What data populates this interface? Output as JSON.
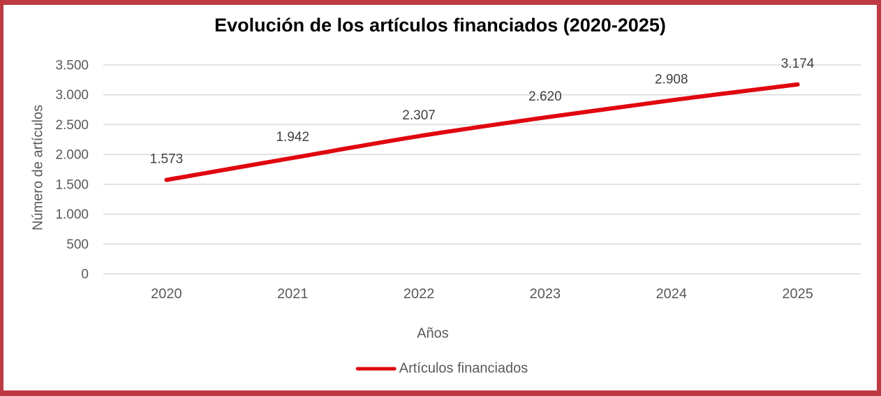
{
  "chart_data": {
    "type": "line",
    "title": "Evolución de los artículos financiados (2020-2025)",
    "xlabel": "Años",
    "ylabel": "Número de artículos",
    "categories": [
      "2020",
      "2021",
      "2022",
      "2023",
      "2024",
      "2025"
    ],
    "series": [
      {
        "name": "Artículos financiados",
        "values": [
          1573,
          1942,
          2307,
          2620,
          2908,
          3174
        ],
        "point_labels": [
          "1.573",
          "1.942",
          "2.307",
          "2.620",
          "2.908",
          "3.174"
        ],
        "color": "#e0070f",
        "smooth": true
      }
    ],
    "y_axis": {
      "min": 0,
      "max": 3500,
      "step": 500,
      "tick_labels": [
        "0",
        "500",
        "1.000",
        "1.500",
        "2.000",
        "2.500",
        "3.000",
        "3.500"
      ]
    },
    "grid": true,
    "legend_position": "bottom"
  },
  "frame": {
    "border_color": "#be3a42"
  },
  "colors": {
    "axis_text": "#595959",
    "data_label_text": "#404040",
    "gridline": "#d9d9d9",
    "title_text": "#000000"
  }
}
